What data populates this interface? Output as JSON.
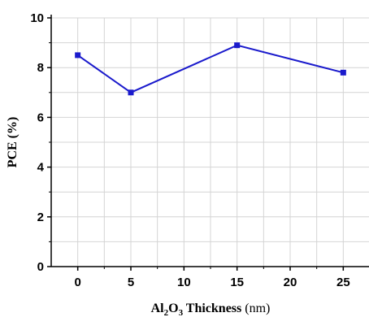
{
  "chart_data": {
    "type": "line",
    "title": "",
    "xlabel": {
      "main": "Al",
      "sub1": "2",
      "mid": "O",
      "sub2": "3",
      "rest": " Thickness ",
      "unit": "(nm)"
    },
    "ylabel": "PCE (%)",
    "x_ticks": [
      0,
      5,
      10,
      15,
      20,
      25
    ],
    "y_ticks": [
      0,
      2,
      4,
      6,
      8,
      10
    ],
    "xlim": [
      -2.5,
      27.5
    ],
    "ylim": [
      0,
      10
    ],
    "grid": true,
    "series": [
      {
        "x": [
          0,
          5,
          15,
          25
        ],
        "y": [
          8.5,
          7.0,
          8.9,
          7.8
        ],
        "color": "#1a1acc"
      }
    ]
  }
}
